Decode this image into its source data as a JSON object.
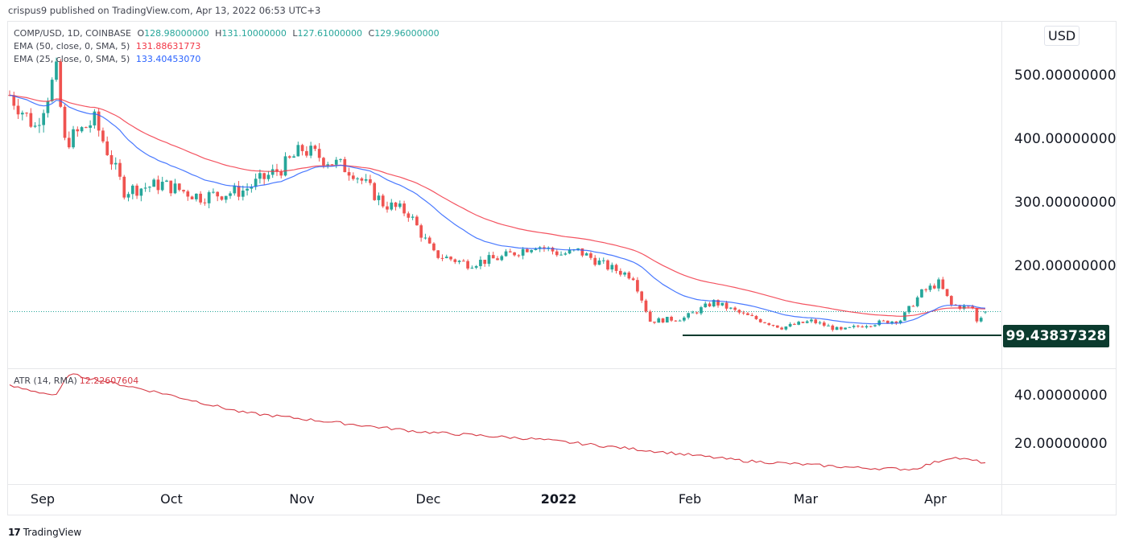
{
  "header": {
    "published": "crispus9 published on TradingView.com, Apr 13, 2022 06:53 UTC+3"
  },
  "legend": {
    "symbol": "COMP/USD, 1D, COINBASE",
    "open_label": "O",
    "open": "128.98000000",
    "high_label": "H",
    "high": "131.10000000",
    "low_label": "L",
    "low": "127.61000000",
    "close_label": "C",
    "close": "129.96000000",
    "ema50_label": "EMA (50, close, 0, SMA, 5)",
    "ema50_value": "131.88631773",
    "ema25_label": "EMA (25, close, 0, SMA, 5)",
    "ema25_value": "133.40453070"
  },
  "price_axis": {
    "currency": "USD",
    "ticks": [
      {
        "label": "500.00000000",
        "value": 500
      },
      {
        "label": "400.00000000",
        "value": 400
      },
      {
        "label": "300.00000000",
        "value": 300
      },
      {
        "label": "200.00000000",
        "value": 200
      }
    ],
    "horizontal_line_label": "99.43837328",
    "horizontal_line_value": 99.44,
    "last_price_value": 129.96
  },
  "atr": {
    "label": "ATR (14, RMA)",
    "value": "12.22607604",
    "ticks": [
      {
        "label": "40.00000000",
        "value": 40
      },
      {
        "label": "20.00000000",
        "value": 20
      }
    ]
  },
  "time_axis": {
    "ticks": [
      {
        "label": "Sep",
        "x": 53,
        "bold": false
      },
      {
        "label": "Oct",
        "x": 213,
        "bold": false
      },
      {
        "label": "Nov",
        "x": 375,
        "bold": false
      },
      {
        "label": "Dec",
        "x": 532,
        "bold": false
      },
      {
        "label": "2022",
        "x": 694,
        "bold": true
      },
      {
        "label": "Feb",
        "x": 857,
        "bold": false
      },
      {
        "label": "Mar",
        "x": 1001,
        "bold": false
      },
      {
        "label": "Apr",
        "x": 1162,
        "bold": false
      }
    ]
  },
  "branding": {
    "logo_mark": "17",
    "name": "TradingView"
  },
  "colors": {
    "up": "#26a69a",
    "down": "#ef5350",
    "ema50": "#f23645",
    "ema25": "#2962ff",
    "atr": "#d63a45",
    "support_line": "#0b3b2e"
  },
  "chart_data": {
    "type": "candlestick",
    "title": "COMP/USD, 1D, COINBASE",
    "xlabel": "",
    "ylabel": "USD",
    "ylim": [
      70,
      580
    ],
    "x_range": [
      "2021-08-26",
      "2022-04-13"
    ],
    "close_series_approx": [
      {
        "date": "2021-08-26",
        "close": 470
      },
      {
        "date": "2021-09-01",
        "close": 420
      },
      {
        "date": "2021-09-06",
        "close": 505
      },
      {
        "date": "2021-09-08",
        "close": 395
      },
      {
        "date": "2021-09-15",
        "close": 430
      },
      {
        "date": "2021-09-22",
        "close": 320
      },
      {
        "date": "2021-10-01",
        "close": 330
      },
      {
        "date": "2021-10-10",
        "close": 310
      },
      {
        "date": "2021-10-20",
        "close": 320
      },
      {
        "date": "2021-10-29",
        "close": 355
      },
      {
        "date": "2021-11-03",
        "close": 385
      },
      {
        "date": "2021-11-10",
        "close": 365
      },
      {
        "date": "2021-11-15",
        "close": 350
      },
      {
        "date": "2021-11-22",
        "close": 300
      },
      {
        "date": "2021-11-28",
        "close": 285
      },
      {
        "date": "2021-12-04",
        "close": 220
      },
      {
        "date": "2021-12-12",
        "close": 205
      },
      {
        "date": "2021-12-20",
        "close": 215
      },
      {
        "date": "2021-12-28",
        "close": 235
      },
      {
        "date": "2022-01-03",
        "close": 220
      },
      {
        "date": "2022-01-07",
        "close": 225
      },
      {
        "date": "2022-01-14",
        "close": 200
      },
      {
        "date": "2022-01-20",
        "close": 185
      },
      {
        "date": "2022-01-24",
        "close": 115
      },
      {
        "date": "2022-02-01",
        "close": 120
      },
      {
        "date": "2022-02-08",
        "close": 145
      },
      {
        "date": "2022-02-15",
        "close": 125
      },
      {
        "date": "2022-02-24",
        "close": 105
      },
      {
        "date": "2022-03-03",
        "close": 115
      },
      {
        "date": "2022-03-10",
        "close": 100
      },
      {
        "date": "2022-03-16",
        "close": 110
      },
      {
        "date": "2022-03-24",
        "close": 117
      },
      {
        "date": "2022-03-29",
        "close": 160
      },
      {
        "date": "2022-04-02",
        "close": 175
      },
      {
        "date": "2022-04-05",
        "close": 140
      },
      {
        "date": "2022-04-10",
        "close": 135
      },
      {
        "date": "2022-04-11",
        "close": 114
      },
      {
        "date": "2022-04-13",
        "close": 129.96
      }
    ],
    "series": [
      {
        "name": "EMA 50",
        "color": "#f23645",
        "last": 131.89
      },
      {
        "name": "EMA 25",
        "color": "#2962ff",
        "last": 133.4
      },
      {
        "name": "Support line",
        "value": 99.44
      }
    ],
    "atr_series_approx": [
      {
        "date": "2021-08-26",
        "value": 44
      },
      {
        "date": "2021-09-06",
        "value": 40
      },
      {
        "date": "2021-09-09",
        "value": 49
      },
      {
        "date": "2021-10-01",
        "value": 41
      },
      {
        "date": "2021-10-20",
        "value": 33
      },
      {
        "date": "2021-11-05",
        "value": 30
      },
      {
        "date": "2021-12-01",
        "value": 25
      },
      {
        "date": "2021-12-28",
        "value": 22
      },
      {
        "date": "2022-01-25",
        "value": 17
      },
      {
        "date": "2022-02-15",
        "value": 13
      },
      {
        "date": "2022-03-15",
        "value": 10
      },
      {
        "date": "2022-03-27",
        "value": 9.5
      },
      {
        "date": "2022-04-05",
        "value": 14.5
      },
      {
        "date": "2022-04-13",
        "value": 12.23
      }
    ]
  }
}
